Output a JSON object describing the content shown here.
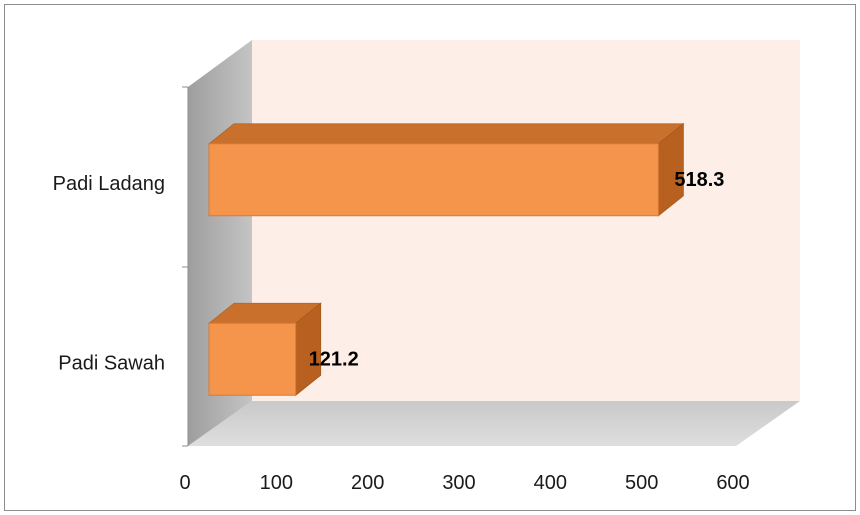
{
  "chart_data": {
    "type": "bar",
    "orientation": "horizontal",
    "three_d": true,
    "categories": [
      "Padi Ladang",
      "Padi Sawah"
    ],
    "values": [
      518.3,
      121.2
    ],
    "data_labels": [
      "518.3",
      "121.2"
    ],
    "xlim": [
      0,
      600
    ],
    "x_ticks": [
      0,
      100,
      200,
      300,
      400,
      500,
      600
    ],
    "x_tick_labels": [
      "0",
      "100",
      "200",
      "300",
      "400",
      "500",
      "600"
    ],
    "title": "",
    "xlabel": "",
    "ylabel": "",
    "legend": "none",
    "grid": false
  },
  "colors": {
    "bar_front": "#f5954c",
    "bar_top": "#c8702c",
    "bar_side": "#b8601f",
    "back_wall": "#fdeee8",
    "side_wall": "#b3b3b3",
    "floor": "#cfcfcf"
  }
}
